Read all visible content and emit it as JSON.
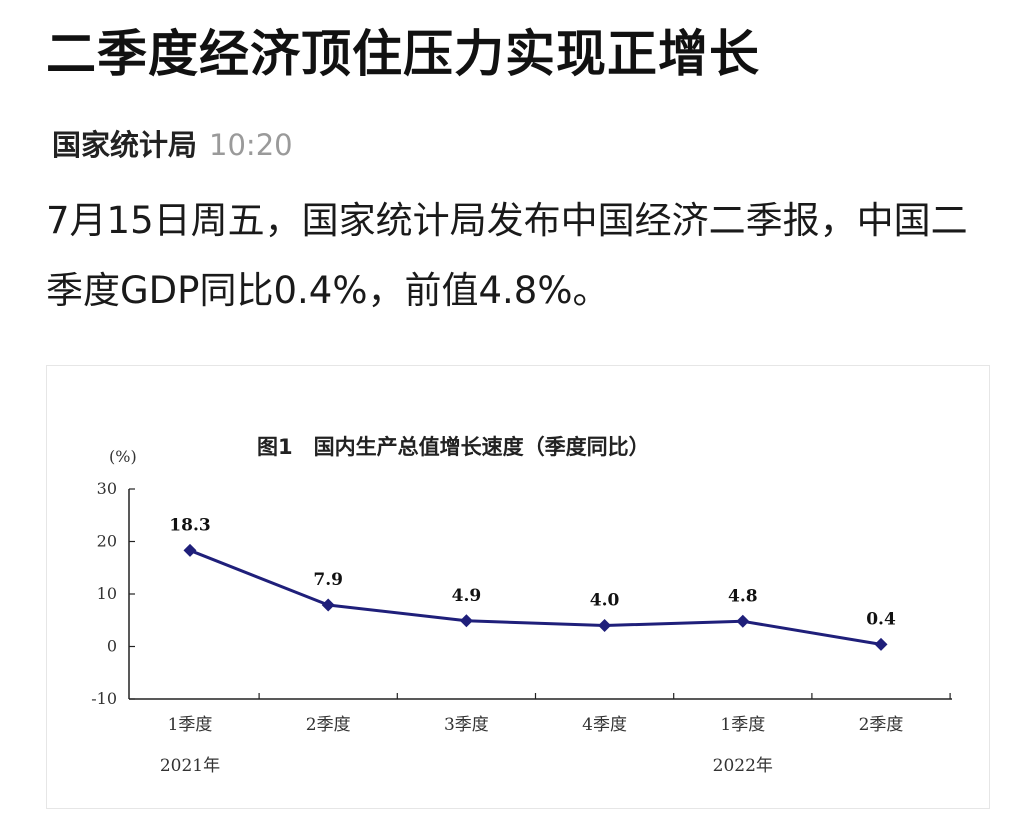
{
  "article": {
    "headline": "二季度经济顶住压力实现正增长",
    "source": "国家统计局",
    "time": "10:20",
    "body": "7月15日周五，国家统计局发布中国经济二季报，中国二季度GDP同比0.4%，前值4.8%。"
  },
  "chart_data": {
    "type": "line",
    "title": "图1　国内生产总值增长速度（季度同比）",
    "ylabel": "(%)",
    "xlabel": "",
    "categories": [
      "1季度",
      "2季度",
      "3季度",
      "4季度",
      "1季度",
      "2季度"
    ],
    "year_labels": [
      {
        "label": "2021年",
        "index": 0
      },
      {
        "label": "2022年",
        "index": 4
      }
    ],
    "values": [
      18.3,
      7.9,
      4.9,
      4.0,
      4.8,
      0.4
    ],
    "value_labels": [
      "18.3",
      "7.9",
      "4.9",
      "4.0",
      "4.8",
      "0.4"
    ],
    "yticks": [
      "30",
      "20",
      "10",
      "0",
      "-10"
    ],
    "ylim": [
      -10,
      30
    ],
    "grid": false,
    "legend": "none",
    "line_color": "#1f1f7a"
  }
}
